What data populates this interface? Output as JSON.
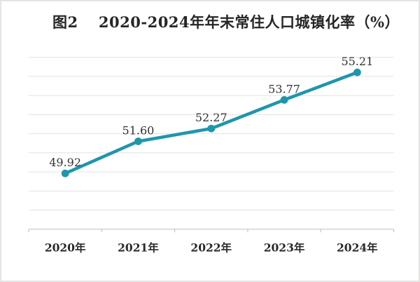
{
  "colors": {
    "line": "#1E96AC",
    "marker": "#1E96AC",
    "gridline": "#E4E1E1",
    "axis_line": "#C9C5C5",
    "tick": "#C9C5C5",
    "title_text": "#272525",
    "data_label_text": "#323232",
    "axis_label_text": "#2B2828",
    "frame_border": "#E6E3E3",
    "background": "#FFFFFF"
  },
  "chart_data": {
    "type": "line",
    "title": "图2　 2020-2024年年末常住人口城镇化率（%）",
    "categories": [
      "2020年",
      "2021年",
      "2022年",
      "2023年",
      "2024年"
    ],
    "values": [
      49.92,
      51.6,
      52.27,
      53.77,
      55.21
    ],
    "value_labels": [
      "49.92",
      "51.60",
      "52.27",
      "53.77",
      "55.21"
    ],
    "xlabel": "",
    "ylabel": "",
    "ylim": [
      47,
      56
    ],
    "y_major_step": 1,
    "y_tick_labels_visible": false,
    "grid": "horizontal",
    "legend": "none",
    "marker_style": "circle",
    "data_labels_position": "above"
  }
}
